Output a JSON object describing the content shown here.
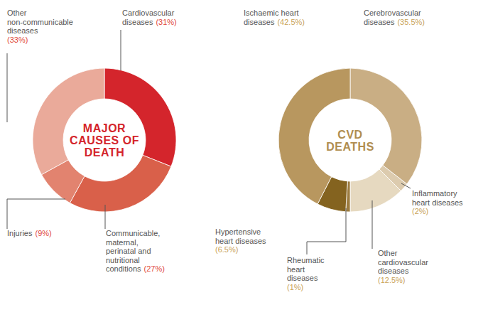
{
  "chart_data": [
    {
      "type": "donut",
      "title": "MAJOR CAUSES OF DEATH",
      "categories": [
        "Cardiovascular diseases",
        "Communicable, maternal, perinatal and nutritional conditions",
        "Injuries",
        "Other non-communicable diseases"
      ],
      "values": [
        31,
        27,
        9,
        33
      ],
      "value_labels": [
        "(31%)",
        "(27%)",
        "(9%)",
        "(33%)"
      ],
      "colors": [
        "#d4252c",
        "#d9604a",
        "#e2836f",
        "#eaaa9a"
      ],
      "data_labels": true
    },
    {
      "type": "donut",
      "title": "CVD DEATHS",
      "categories": [
        "Cerebrovascular diseases",
        "Inflammatory heart diseases",
        "Other cardiovascular diseases",
        "Rheumatic heart diseases",
        "Hypertensive heart diseases",
        "Ischaemic heart diseases"
      ],
      "values": [
        35.5,
        2,
        12.5,
        1,
        6.5,
        42.5
      ],
      "value_labels": [
        "(35.5%)",
        "(2%)",
        "(12.5%)",
        "(1%)",
        "(6.5%)",
        "(42.5%)"
      ],
      "colors": [
        "#c9ae84",
        "#dccbae",
        "#e6d9c0",
        "#9c7b3f",
        "#84631f",
        "#b8975f"
      ],
      "data_labels": true
    }
  ]
}
